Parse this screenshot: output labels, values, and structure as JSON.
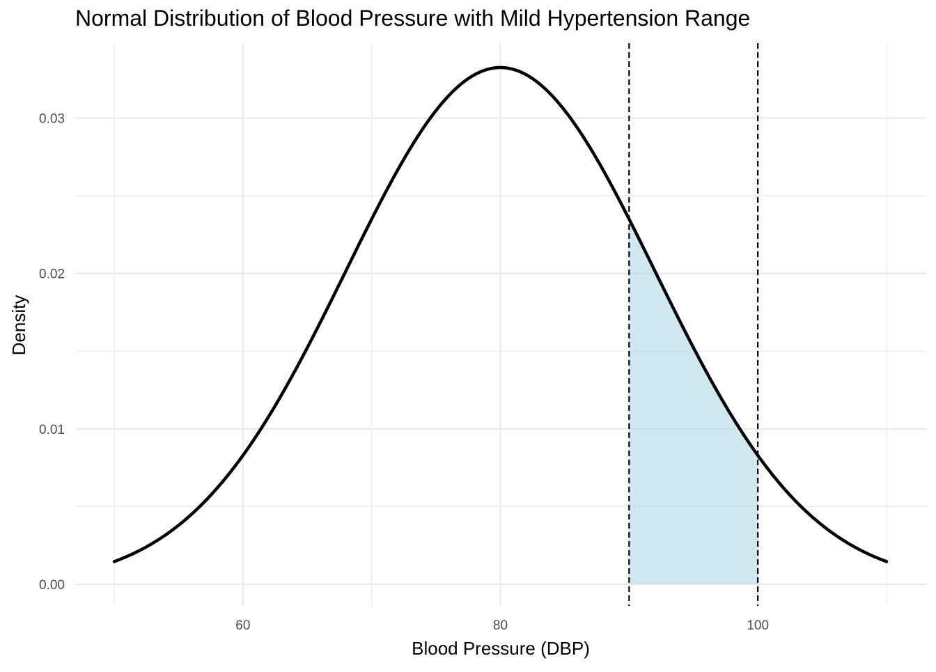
{
  "chart_data": {
    "type": "area",
    "title": "Normal Distribution of Blood Pressure with Mild Hypertension Range",
    "xlabel": "Blood Pressure (DBP)",
    "ylabel": "Density",
    "xlim": [
      50,
      110
    ],
    "ylim": [
      0,
      0.0332
    ],
    "x_ticks": [
      60,
      80,
      100
    ],
    "x_tick_labels": [
      "60",
      "80",
      "100"
    ],
    "y_ticks": [
      0.0,
      0.01,
      0.02,
      0.03
    ],
    "y_tick_labels": [
      "0.00",
      "0.01",
      "0.02",
      "0.03"
    ],
    "grid": true,
    "legend": "none",
    "distribution": {
      "mean": 80,
      "sd": 12
    },
    "series": [
      {
        "x": [
          50,
          52.5,
          55,
          57.5,
          60,
          62.5,
          65,
          67.5,
          70,
          72.5,
          75,
          77.5,
          80,
          82.5,
          85,
          87.5,
          90,
          92.5,
          95,
          97.5,
          100,
          102.5,
          105,
          107.5,
          110
        ],
        "values": [
          0.00146,
          0.00236,
          0.00364,
          0.00541,
          0.00828,
          0.01136,
          0.01519,
          0.01962,
          0.02353,
          0.02744,
          0.03047,
          0.03252,
          0.03324,
          0.03252,
          0.03047,
          0.02744,
          0.02353,
          0.01962,
          0.01519,
          0.01136,
          0.00828,
          0.00541,
          0.00364,
          0.00236,
          0.00146
        ]
      }
    ],
    "shaded_range": {
      "from": 90,
      "to": 100
    },
    "reference_lines": [
      90,
      100
    ],
    "colors": {
      "curve": "#000000",
      "fill": "#add8e6",
      "grid": "#ebebeb",
      "reference": "#000000"
    }
  }
}
